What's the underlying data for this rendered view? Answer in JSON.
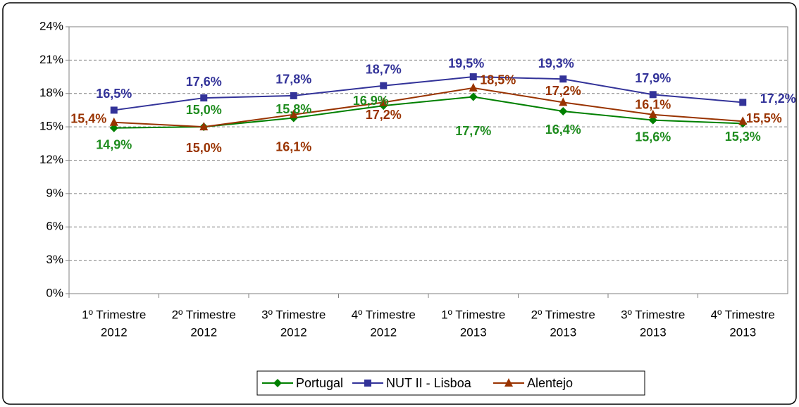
{
  "chart_data": {
    "type": "line",
    "categories": [
      [
        "1º Trimestre",
        "2012"
      ],
      [
        "2º Trimestre",
        "2012"
      ],
      [
        "3º Trimestre",
        "2012"
      ],
      [
        "4º Trimestre",
        "2012"
      ],
      [
        "1º Trimestre",
        "2013"
      ],
      [
        "2º Trimestre",
        "2013"
      ],
      [
        "3º Trimestre",
        "2013"
      ],
      [
        "4º Trimestre",
        "2013"
      ]
    ],
    "series": [
      {
        "name": "Portugal",
        "color": "#008000",
        "marker": "diamond",
        "values": [
          14.9,
          15.0,
          15.8,
          16.9,
          17.7,
          16.4,
          15.6,
          15.3
        ],
        "value_labels": [
          "14,9%",
          "15,0%",
          "15,8%",
          "16,9%",
          "17,7%",
          "16,4%",
          "15,6%",
          "15,3%"
        ]
      },
      {
        "name": "NUT II - Lisboa",
        "color": "#333399",
        "marker": "square",
        "values": [
          16.5,
          17.6,
          17.8,
          18.7,
          19.5,
          19.3,
          17.9,
          17.2
        ],
        "value_labels": [
          "16,5%",
          "17,6%",
          "17,8%",
          "18,7%",
          "19,5%",
          "19,3%",
          "17,9%",
          "17,2%"
        ]
      },
      {
        "name": "Alentejo",
        "color": "#993300",
        "marker": "triangle",
        "values": [
          15.4,
          15.0,
          16.1,
          17.2,
          18.5,
          17.2,
          16.1,
          15.5
        ],
        "value_labels": [
          "15,4%",
          "15,0%",
          "16,1%",
          "17,2%",
          "18,5%",
          "17,2%",
          "16,1%",
          "15,5%"
        ]
      }
    ],
    "ylim": [
      0,
      24
    ],
    "yticks": [
      {
        "value": 0,
        "label": "0%"
      },
      {
        "value": 3,
        "label": "3%"
      },
      {
        "value": 6,
        "label": "6%"
      },
      {
        "value": 9,
        "label": "9%"
      },
      {
        "value": 12,
        "label": "12%"
      },
      {
        "value": 15,
        "label": "15%"
      },
      {
        "value": 18,
        "label": "18%"
      },
      {
        "value": 21,
        "label": "21%"
      },
      {
        "value": 24,
        "label": "24%"
      }
    ],
    "grid": true,
    "legend": "bottom"
  }
}
